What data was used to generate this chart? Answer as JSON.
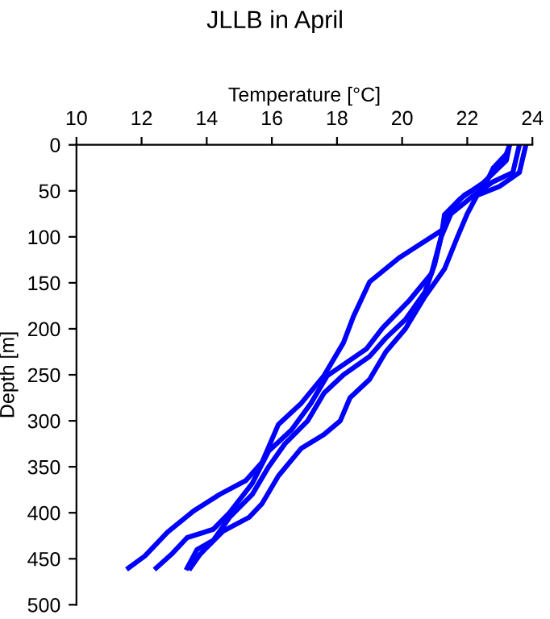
{
  "chart_data": {
    "type": "line",
    "title": "JLLB in April",
    "xlabel": "Temperature [°C]",
    "ylabel": "Depth [m]",
    "xlim": [
      10,
      24
    ],
    "xticks": [
      10,
      12,
      14,
      16,
      18,
      20,
      22,
      24
    ],
    "ylim": [
      500,
      0
    ],
    "yticks": [
      0,
      50,
      100,
      150,
      200,
      250,
      300,
      350,
      400,
      450,
      500
    ],
    "grid": false,
    "legend": false,
    "marker": "none",
    "line_style": "solid",
    "series": [
      {
        "color": "#0000ff",
        "x": [
          23.3,
          23.2,
          22.8,
          22.6,
          21.9,
          21.5,
          21.3,
          19.9,
          19.0,
          18.5,
          18.2,
          17.6,
          16.9,
          16.2,
          15.7,
          15.2,
          14.4,
          13.6,
          12.8,
          12.1,
          11.6
        ],
        "values": [
          0,
          10,
          25,
          40,
          55,
          70,
          91,
          123,
          149,
          187,
          215,
          251,
          281,
          304,
          345,
          365,
          380,
          398,
          421,
          447,
          460
        ]
      },
      {
        "color": "#0000ff",
        "x": [
          23.3,
          23.2,
          22.5,
          21.8,
          21.3,
          21.2,
          20.9,
          20.2,
          19.4,
          18.9,
          17.7,
          17.2,
          16.6,
          15.9,
          15.4,
          14.7,
          14.2,
          13.4,
          12.95,
          12.45
        ],
        "values": [
          0,
          17,
          41,
          58,
          76,
          100,
          140,
          170,
          199,
          222,
          251,
          281,
          310,
          333,
          368,
          400,
          418,
          427,
          444,
          460
        ]
      },
      {
        "color": "#0000ff",
        "x": [
          23.6,
          23.4,
          22.8,
          22.2,
          21.5,
          21.2,
          21.0,
          20.7,
          20.1,
          19.5,
          19.0,
          18.2,
          17.6,
          17.1,
          16.4,
          15.9,
          15.4,
          14.7,
          14.2,
          13.7,
          13.4
        ],
        "values": [
          0,
          30,
          40,
          55,
          75,
          100,
          130,
          160,
          190,
          210,
          230,
          250,
          270,
          300,
          325,
          350,
          380,
          405,
          430,
          440,
          460
        ]
      },
      {
        "color": "#0000ff",
        "x": [
          23.8,
          23.6,
          23.0,
          22.3,
          22.0,
          21.7,
          21.3,
          20.7,
          20.1,
          19.5,
          19.0,
          18.4,
          18.1,
          17.6,
          16.9,
          16.2,
          15.7,
          15.3,
          14.5,
          13.8,
          13.5
        ],
        "values": [
          0,
          30,
          45,
          55,
          75,
          100,
          135,
          165,
          200,
          225,
          255,
          275,
          300,
          315,
          330,
          360,
          390,
          405,
          420,
          445,
          460
        ]
      }
    ]
  }
}
